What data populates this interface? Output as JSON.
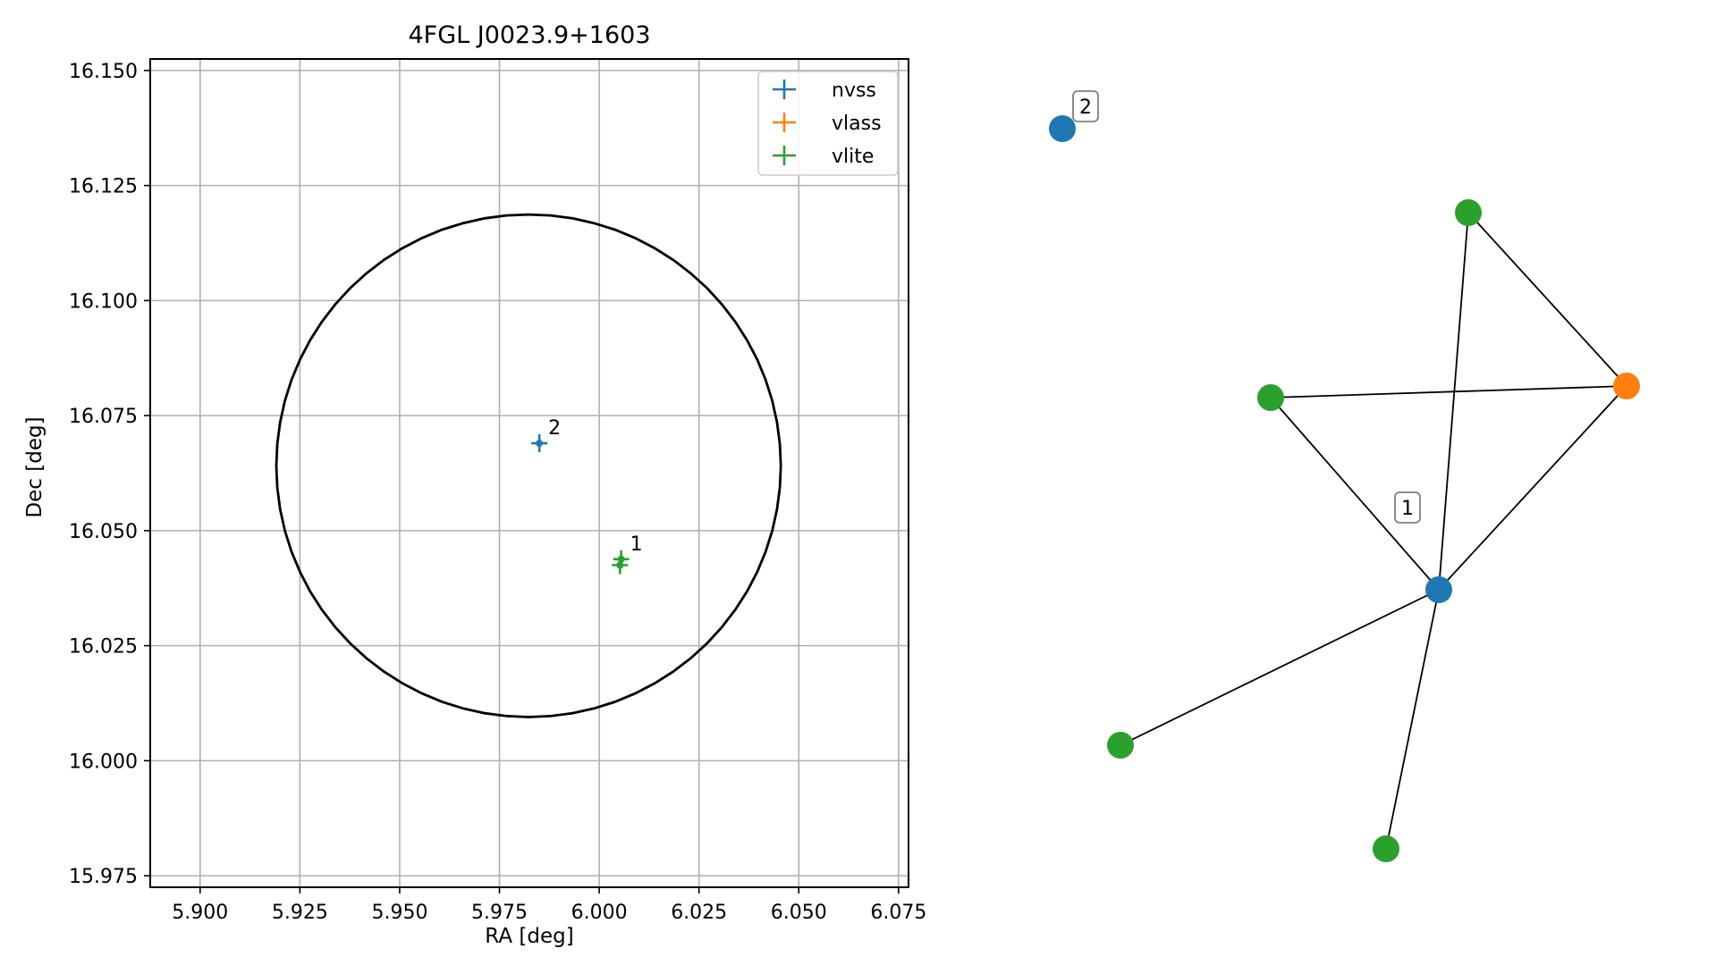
{
  "chart_data": [
    {
      "type": "scatter",
      "title": "4FGL J0023.9+1603",
      "xlabel": "RA [deg]",
      "ylabel": "Dec [deg]",
      "xlim": [
        5.8875,
        6.0775
      ],
      "ylim": [
        15.9725,
        16.1525
      ],
      "xticks": [
        "5.900",
        "5.925",
        "5.950",
        "5.975",
        "6.000",
        "6.025",
        "6.050",
        "6.075"
      ],
      "yticks": [
        "15.975",
        "16.000",
        "16.025",
        "16.050",
        "16.075",
        "16.100",
        "16.125",
        "16.150"
      ],
      "grid": true,
      "legend_position": "top-right",
      "series": [
        {
          "name": "nvss",
          "color": "#1f77b4",
          "points": [
            {
              "x": 5.985,
              "y": 16.069
            }
          ]
        },
        {
          "name": "vlass",
          "color": "#ff7f0e",
          "points": []
        },
        {
          "name": "vlite",
          "color": "#2ca02c",
          "points": [
            {
              "x": 6.0055,
              "y": 16.0438
            },
            {
              "x": 6.0052,
              "y": 16.0425
            }
          ]
        }
      ],
      "annotations": [
        {
          "text": "2",
          "x": 5.985,
          "y": 16.069
        },
        {
          "text": "1",
          "x": 6.0055,
          "y": 16.0438
        }
      ],
      "circle": {
        "center_ra": 5.9823,
        "center_dec": 16.0641,
        "radius_ra": 0.0632,
        "radius_dec": 0.0546,
        "color": "#000000"
      }
    },
    {
      "type": "network",
      "nodes": [
        {
          "id": "n2",
          "survey": "nvss",
          "color": "#1f77b4"
        },
        {
          "id": "vl_top",
          "survey": "vlite",
          "color": "#2ca02c"
        },
        {
          "id": "vl_left",
          "survey": "vlite",
          "color": "#2ca02c"
        },
        {
          "id": "vlass1",
          "survey": "vlass",
          "color": "#ff7f0e"
        },
        {
          "id": "n1",
          "survey": "nvss",
          "color": "#1f77b4"
        },
        {
          "id": "vl_lowleft",
          "survey": "vlite",
          "color": "#2ca02c"
        },
        {
          "id": "vl_bottom",
          "survey": "vlite",
          "color": "#2ca02c"
        }
      ],
      "edges": [
        [
          "vl_top",
          "vlass1"
        ],
        [
          "vl_top",
          "n1"
        ],
        [
          "vl_left",
          "vlass1"
        ],
        [
          "vl_left",
          "n1"
        ],
        [
          "vlass1",
          "n1"
        ],
        [
          "n1",
          "vl_lowleft"
        ],
        [
          "n1",
          "vl_bottom"
        ]
      ],
      "labels": [
        {
          "text": "2",
          "node": "n2"
        },
        {
          "text": "1",
          "node": "n1"
        }
      ]
    }
  ]
}
